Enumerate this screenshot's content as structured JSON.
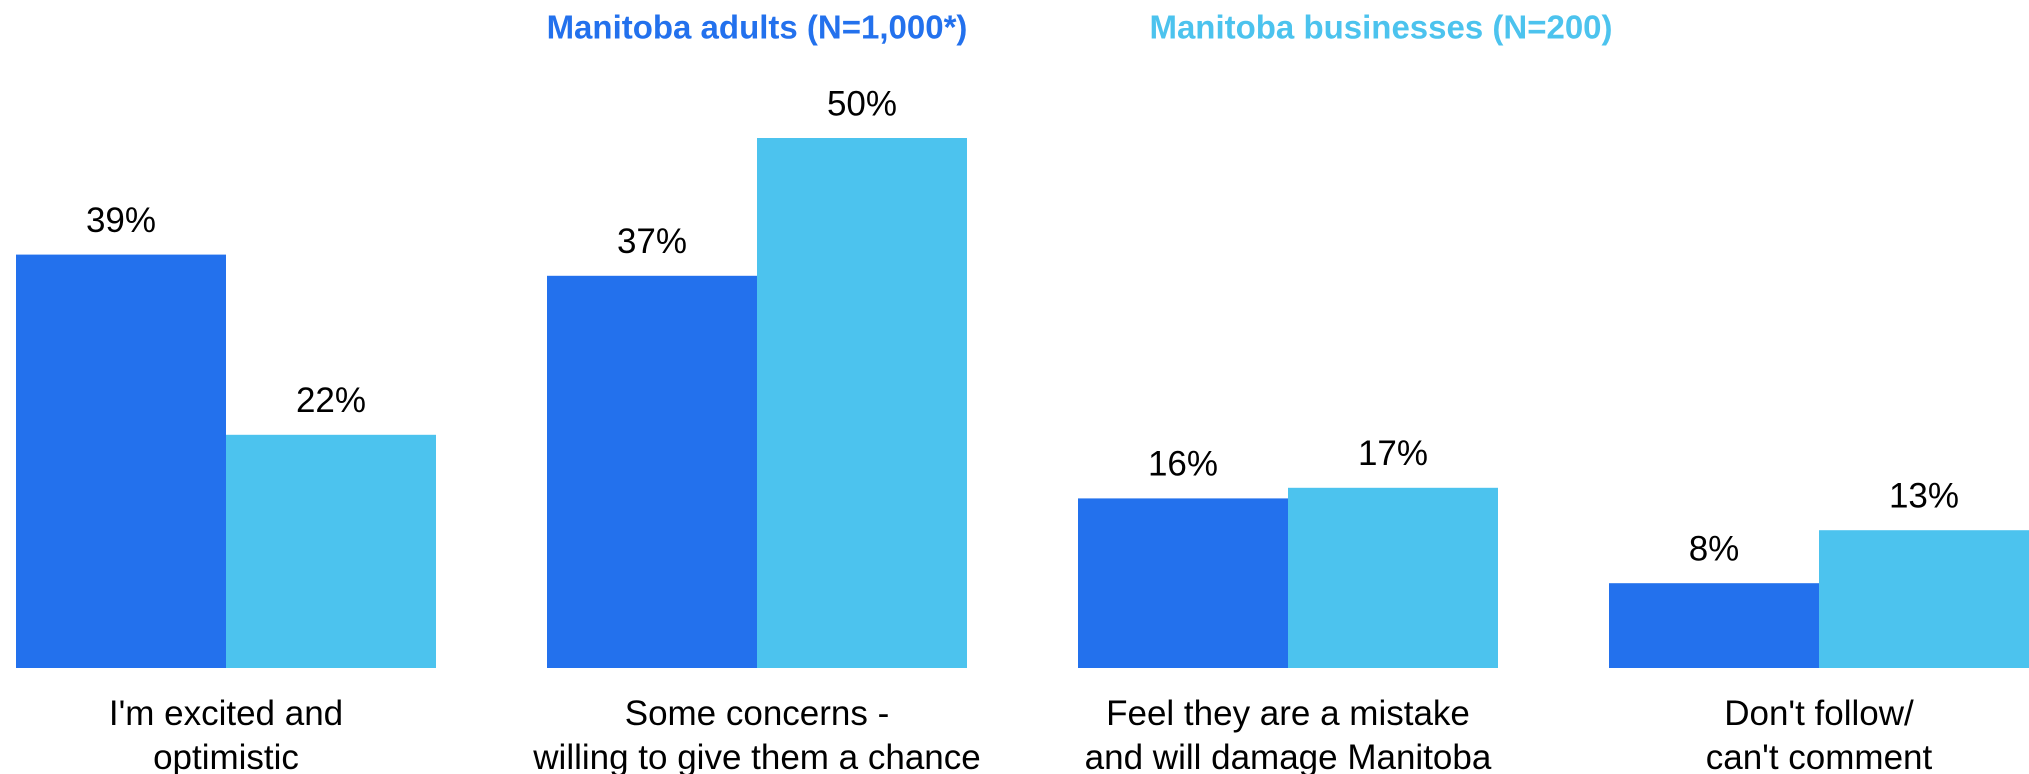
{
  "chart_data": {
    "type": "bar",
    "categories": [
      "I'm excited and\noptimistic",
      "Some concerns -\nwilling to give them a chance",
      "Feel they are a mistake\nand will damage Manitoba",
      "Don't follow/\ncan't comment"
    ],
    "series": [
      {
        "name": "Manitoba adults (N=1,000*)",
        "color": "#2371ed",
        "values": [
          39,
          37,
          16,
          8
        ],
        "value_labels": [
          "39%",
          "37%",
          "16%",
          "8%"
        ]
      },
      {
        "name": "Manitoba businesses (N=200)",
        "color": "#4cc3ee",
        "values": [
          22,
          50,
          17,
          13
        ],
        "value_labels": [
          "22%",
          "50%",
          "17%",
          "13%"
        ]
      }
    ],
    "ylim": [
      0,
      50
    ]
  }
}
